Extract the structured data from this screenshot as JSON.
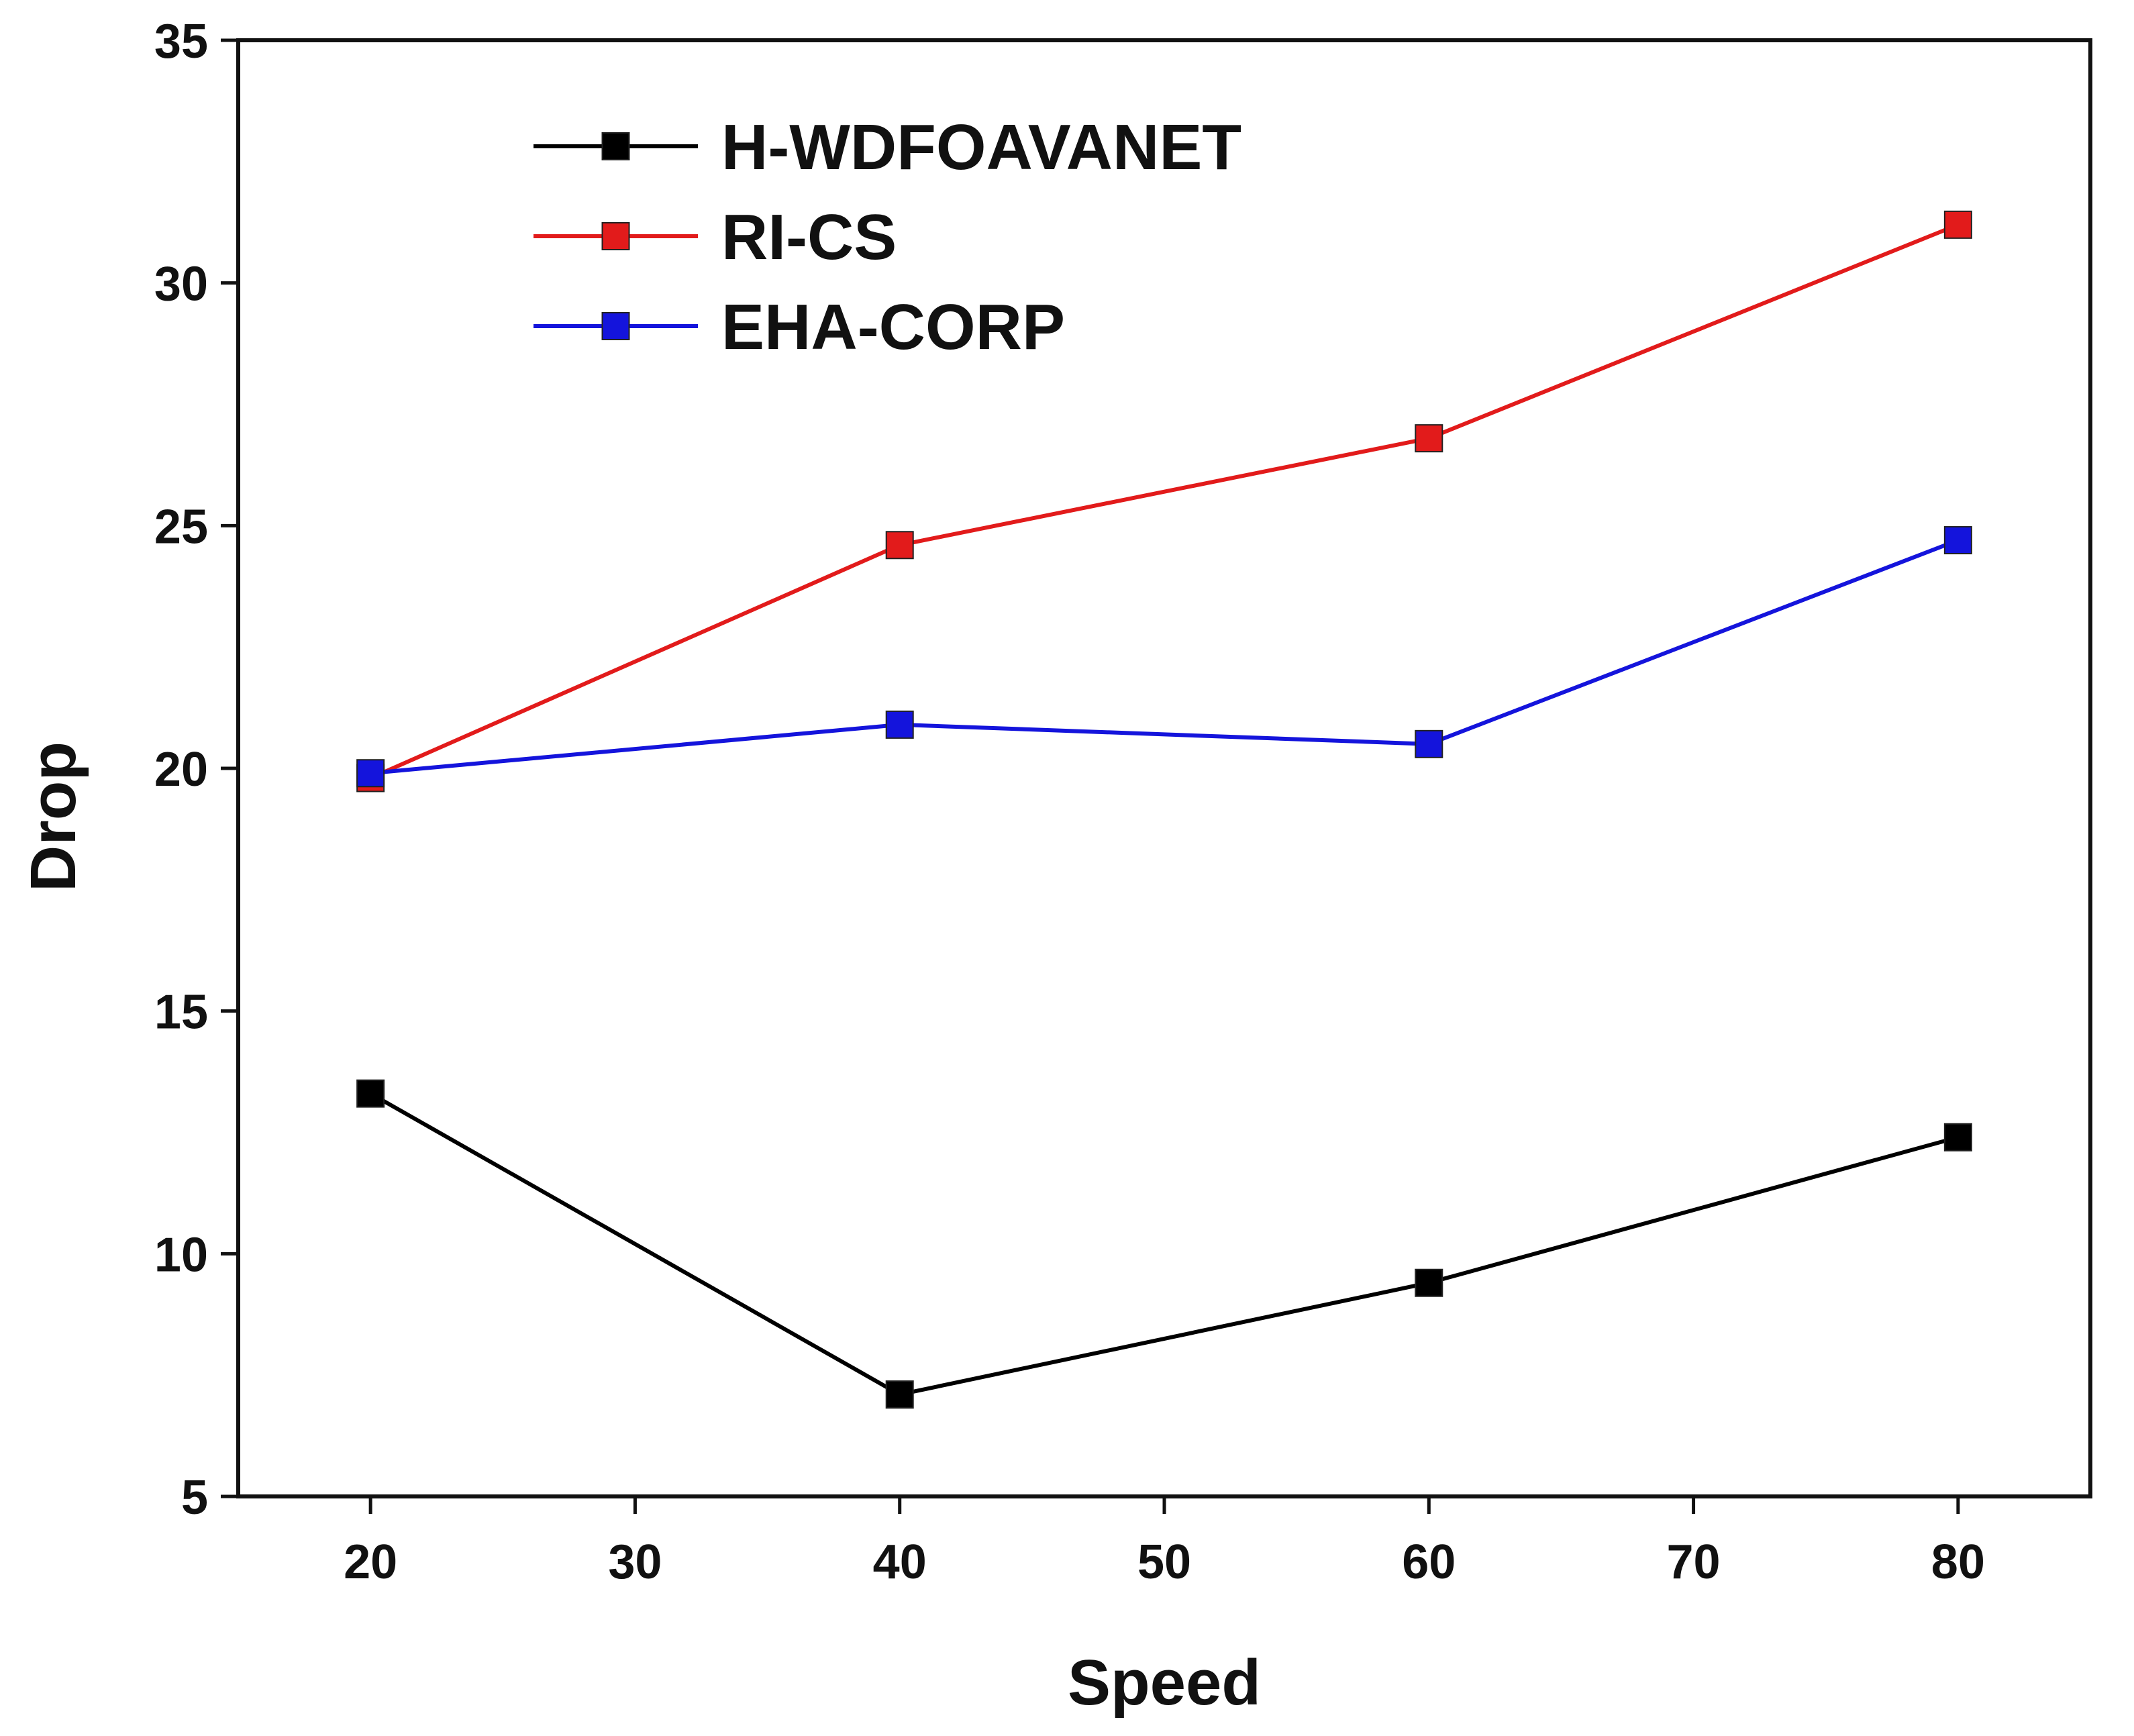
{
  "chart_data": {
    "type": "line",
    "title": "",
    "xlabel": "Speed",
    "ylabel": "Drop",
    "x": [
      20,
      40,
      60,
      80
    ],
    "xlim": [
      15,
      85
    ],
    "ylim": [
      5,
      35
    ],
    "xticks": [
      20,
      30,
      40,
      50,
      60,
      70,
      80
    ],
    "yticks": [
      5,
      10,
      15,
      20,
      25,
      30,
      35
    ],
    "grid": false,
    "legend_position": "top-left",
    "marker": "square",
    "series": [
      {
        "name": "H-WDFOAVANET",
        "color": "#000000",
        "values": [
          13.3,
          7.1,
          9.4,
          12.4
        ]
      },
      {
        "name": "RI-CS",
        "color": "#e21b1b",
        "values": [
          19.8,
          24.6,
          26.8,
          31.2
        ]
      },
      {
        "name": "EHA-CORP",
        "color": "#1414dc",
        "values": [
          19.9,
          20.9,
          20.5,
          24.7
        ]
      }
    ]
  }
}
